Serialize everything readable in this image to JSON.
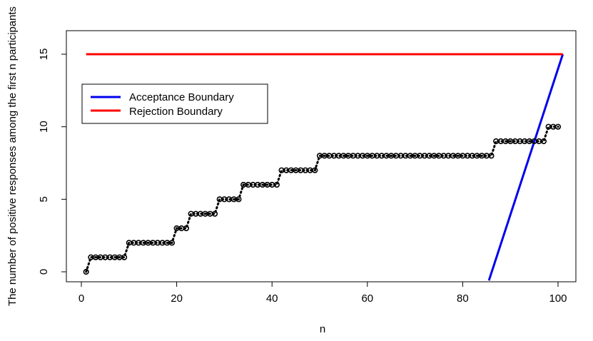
{
  "chart_data": {
    "type": "scatter",
    "title": "",
    "xlabel": "n",
    "ylabel": "The number of positive responses among the first n participants",
    "xlim": [
      0,
      101
    ],
    "ylim": [
      -0.5,
      16.5
    ],
    "xticks": [
      0,
      20,
      40,
      60,
      80,
      100
    ],
    "yticks": [
      0,
      5,
      10,
      15
    ],
    "legend": {
      "placement": "top-left",
      "entries": [
        {
          "label": "Acceptance Boundary",
          "color": "#0000ee"
        },
        {
          "label": "Rejection Boundary",
          "color": "#ff0000"
        }
      ]
    },
    "observed": {
      "color": "#000000",
      "marker": "open-circle",
      "connector": "dotted",
      "steps": [
        {
          "from": 1,
          "to": 1,
          "y": 0
        },
        {
          "from": 2,
          "to": 9,
          "y": 1
        },
        {
          "from": 10,
          "to": 19,
          "y": 2
        },
        {
          "from": 20,
          "to": 22,
          "y": 3
        },
        {
          "from": 23,
          "to": 28,
          "y": 4
        },
        {
          "from": 29,
          "to": 33,
          "y": 5
        },
        {
          "from": 34,
          "to": 41,
          "y": 6
        },
        {
          "from": 42,
          "to": 49,
          "y": 7
        },
        {
          "from": 50,
          "to": 86,
          "y": 8
        },
        {
          "from": 87,
          "to": 97,
          "y": 9
        },
        {
          "from": 98,
          "to": 100,
          "y": 10
        }
      ]
    },
    "series": [
      {
        "name": "Acceptance Boundary",
        "color": "#0000ee",
        "x": [
          85.5,
          101
        ],
        "y": [
          -0.6,
          15
        ]
      },
      {
        "name": "Rejection Boundary",
        "color": "#ff0000",
        "x": [
          1,
          101
        ],
        "y": [
          15,
          15
        ]
      }
    ]
  }
}
